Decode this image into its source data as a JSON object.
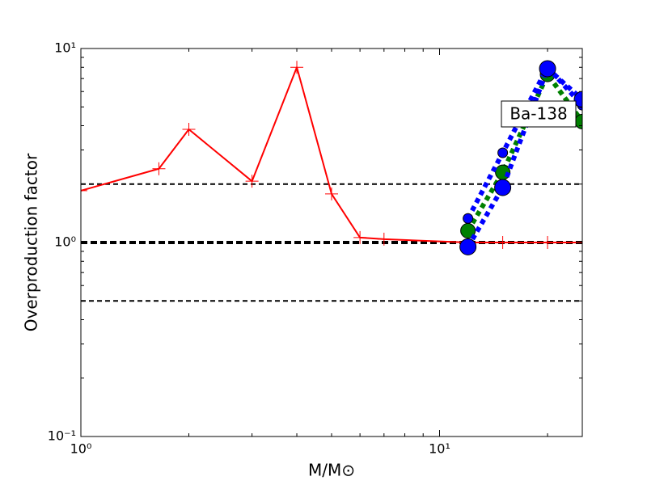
{
  "chart_data": {
    "type": "line",
    "xlabel": "M/M⊙",
    "ylabel": "Overproduction factor",
    "annotations": [
      {
        "text": "Ba-138"
      }
    ],
    "xlog": true,
    "ylog": true,
    "xlim": [
      1,
      25
    ],
    "ylim": [
      0.1,
      10
    ],
    "xticks": [
      {
        "value": 1,
        "label": "10⁰"
      },
      {
        "value": 10,
        "label": "10¹"
      }
    ],
    "yticks": [
      {
        "value": 0.1,
        "label": "10⁻¹"
      },
      {
        "value": 1,
        "label": "10⁰"
      },
      {
        "value": 10,
        "label": "10¹"
      }
    ],
    "reference_lines": [
      0.5,
      1,
      2
    ],
    "series": [
      {
        "color": "#ff0000",
        "linestyle": "solid",
        "marker": "+",
        "x": [
          1,
          1.65,
          2,
          3,
          4,
          5,
          6,
          7,
          12,
          15,
          20,
          25
        ],
        "values": [
          1.85,
          2.4,
          3.83,
          2.07,
          8.0,
          1.78,
          1.06,
          1.04,
          1.0,
          1.0,
          1.0,
          1.0
        ]
      },
      {
        "color": "#008000",
        "linestyle": "dotted",
        "marker": "o",
        "x": [
          12,
          15,
          20,
          25
        ],
        "values": [
          1.15,
          2.3,
          7.35,
          4.2
        ]
      },
      {
        "color": "#0000ff",
        "linestyle": "dotted",
        "marker": "o",
        "x": [
          12,
          15,
          20,
          25
        ],
        "values": [
          1.33,
          2.9,
          8.0,
          5.1
        ]
      },
      {
        "color": "#0000ff",
        "linestyle": "dotted",
        "marker": "o",
        "x": [
          12,
          15,
          20,
          25
        ],
        "values": [
          0.95,
          1.92,
          7.87,
          5.46
        ]
      }
    ]
  }
}
